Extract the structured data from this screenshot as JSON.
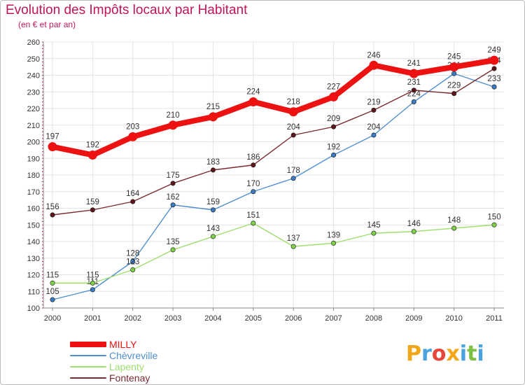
{
  "header": {
    "title": "Evolution des Impôts locaux par Habitant",
    "subtitle": "(en € et par an)"
  },
  "chart_data": {
    "type": "line",
    "title": "Evolution des Impôts locaux par Habitant",
    "subtitle": "(en € et par an)",
    "xlabel": "",
    "ylabel": "",
    "x": [
      "2000",
      "2001",
      "2002",
      "2003",
      "2004",
      "2005",
      "2006",
      "2007",
      "2008",
      "2009",
      "2010",
      "2011"
    ],
    "ylim": [
      100,
      260
    ],
    "yticks": [
      100,
      110,
      120,
      130,
      140,
      150,
      160,
      170,
      180,
      190,
      200,
      210,
      220,
      230,
      240,
      250,
      260
    ],
    "grid": true,
    "legend_position": "bottom-left",
    "series": [
      {
        "name": "Chèvreville",
        "color": "#4f8fd0",
        "marker": "#3a7cc4",
        "values": [
          105,
          111,
          128,
          162,
          159,
          170,
          178,
          192,
          204,
          224,
          241,
          233
        ]
      },
      {
        "name": "Lapenty",
        "color": "#9ede6e",
        "marker": "#7fd14a",
        "values": [
          115,
          115,
          123,
          135,
          143,
          151,
          137,
          139,
          145,
          146,
          148,
          150
        ]
      },
      {
        "name": "Fontenay",
        "color": "#7a2a2f",
        "marker": "#5e161b",
        "values": [
          156,
          159,
          164,
          175,
          183,
          186,
          204,
          209,
          219,
          231,
          229,
          244
        ]
      },
      {
        "name": "MILLY",
        "color": "#ee1111",
        "marker": "#ee1111",
        "values": [
          197,
          192,
          203,
          210,
          215,
          224,
          218,
          227,
          246,
          241,
          245,
          249
        ]
      }
    ]
  },
  "legend": {
    "items": [
      {
        "label": "MILLY",
        "color": "#ee1111"
      },
      {
        "label": "Chèvreville",
        "color": "#4f8fd0"
      },
      {
        "label": "Lapenty",
        "color": "#9ede6e"
      },
      {
        "label": "Fontenay",
        "color": "#7a2a2f"
      }
    ]
  },
  "logo": {
    "letters": [
      "P",
      "r",
      "o",
      "x",
      "i",
      "t",
      "i"
    ],
    "colors": [
      "#f2a71b",
      "#4aa3df",
      "#e8463a",
      "#f2a71b",
      "#4aa3df",
      "#7cc142",
      "#4aa3df"
    ]
  }
}
